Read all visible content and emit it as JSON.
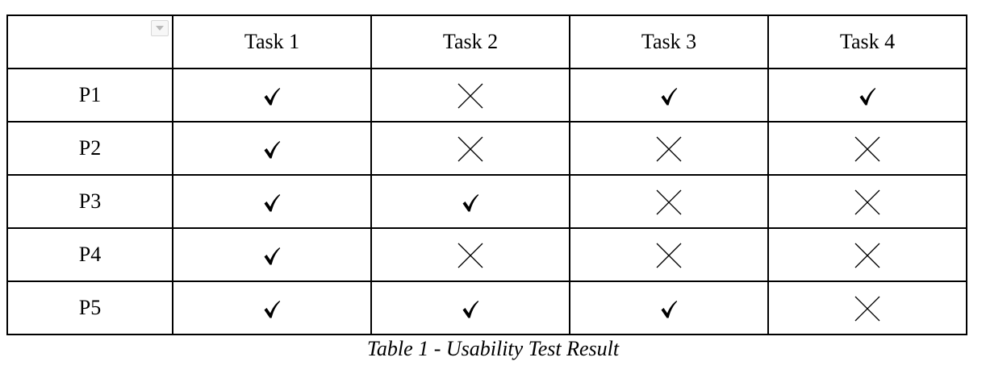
{
  "table": {
    "columns": [
      "Task 1",
      "Task 2",
      "Task 3",
      "Task 4"
    ],
    "rows": [
      {
        "label": "P1",
        "results": [
          "check",
          "cross",
          "check",
          "check"
        ]
      },
      {
        "label": "P2",
        "results": [
          "check",
          "cross",
          "cross",
          "cross"
        ]
      },
      {
        "label": "P3",
        "results": [
          "check",
          "check",
          "cross",
          "cross"
        ]
      },
      {
        "label": "P4",
        "results": [
          "check",
          "cross",
          "cross",
          "cross"
        ]
      },
      {
        "label": "P5",
        "results": [
          "check",
          "check",
          "check",
          "cross"
        ]
      }
    ]
  },
  "caption": "Table 1 - Usability Test Result",
  "icons": {
    "check": "check-mark-icon",
    "cross": "cross-mark-icon",
    "dropdown": "dropdown-arrow-icon"
  }
}
